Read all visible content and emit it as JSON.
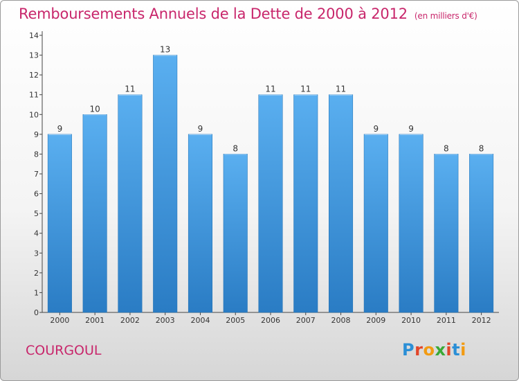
{
  "chart_data": {
    "type": "bar",
    "title": "Remboursements Annuels de la Dette de 2000 à 2012",
    "subtitle": "(en milliers d'€)",
    "categories": [
      "2000",
      "2001",
      "2002",
      "2003",
      "2004",
      "2005",
      "2006",
      "2007",
      "2008",
      "2009",
      "2010",
      "2011",
      "2012"
    ],
    "values": [
      9,
      10,
      11,
      13,
      9,
      8,
      11,
      11,
      11,
      9,
      9,
      8,
      8
    ],
    "value_labels": [
      "9",
      "10",
      "11",
      "13",
      "9",
      "8",
      "11",
      "11",
      "11",
      "9",
      "9",
      "8",
      "8"
    ],
    "y_ticks": [
      "0",
      "1",
      "2",
      "3",
      "4",
      "5",
      "6",
      "7",
      "8",
      "9",
      "10",
      "11",
      "12",
      "13",
      "14"
    ],
    "ylim": [
      0,
      14
    ],
    "grid": false,
    "legend": "none",
    "bar_color": "#3a8fd4",
    "xlabel": "",
    "ylabel": ""
  },
  "footer": {
    "commune": "COURGOUL",
    "logo_letters": [
      "P",
      "r",
      "o",
      "x",
      "i",
      "t",
      "i"
    ],
    "logo_colors": [
      "#2b8fd6",
      "#e2462a",
      "#f29b12",
      "#3aa935",
      "#e2462a",
      "#2b8fd6",
      "#f29b12"
    ]
  },
  "colors": {
    "title": "#c8266b"
  }
}
